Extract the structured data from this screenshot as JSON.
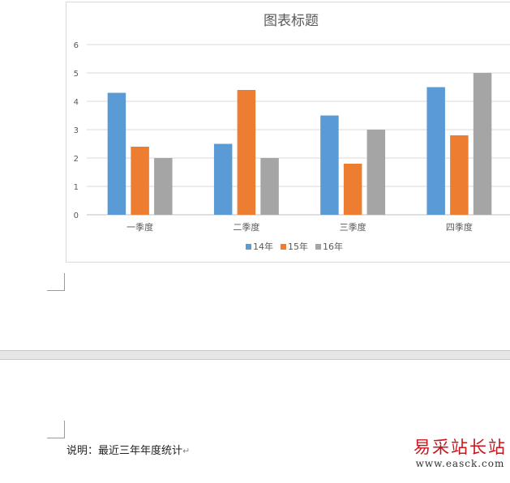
{
  "document": {
    "caption": "说明：最近三年年度统计",
    "pilcrow": "↵"
  },
  "watermark": {
    "name": "易采站长站",
    "url": "www.easck.com"
  },
  "chart_data": {
    "type": "bar",
    "title": "图表标题",
    "categories": [
      "一季度",
      "二季度",
      "三季度",
      "四季度"
    ],
    "series": [
      {
        "name": "14年",
        "color": "#5b9bd5",
        "values": [
          4.3,
          2.5,
          3.5,
          4.5
        ]
      },
      {
        "name": "15年",
        "color": "#ed7d31",
        "values": [
          2.4,
          4.4,
          1.8,
          2.8
        ]
      },
      {
        "name": "16年",
        "color": "#a5a5a5",
        "values": [
          2.0,
          2.0,
          3.0,
          5.0
        ]
      }
    ],
    "ylim": [
      0,
      6
    ],
    "yticks": [
      0,
      1,
      2,
      3,
      4,
      5,
      6
    ],
    "grid": true,
    "legend": "bottom"
  }
}
